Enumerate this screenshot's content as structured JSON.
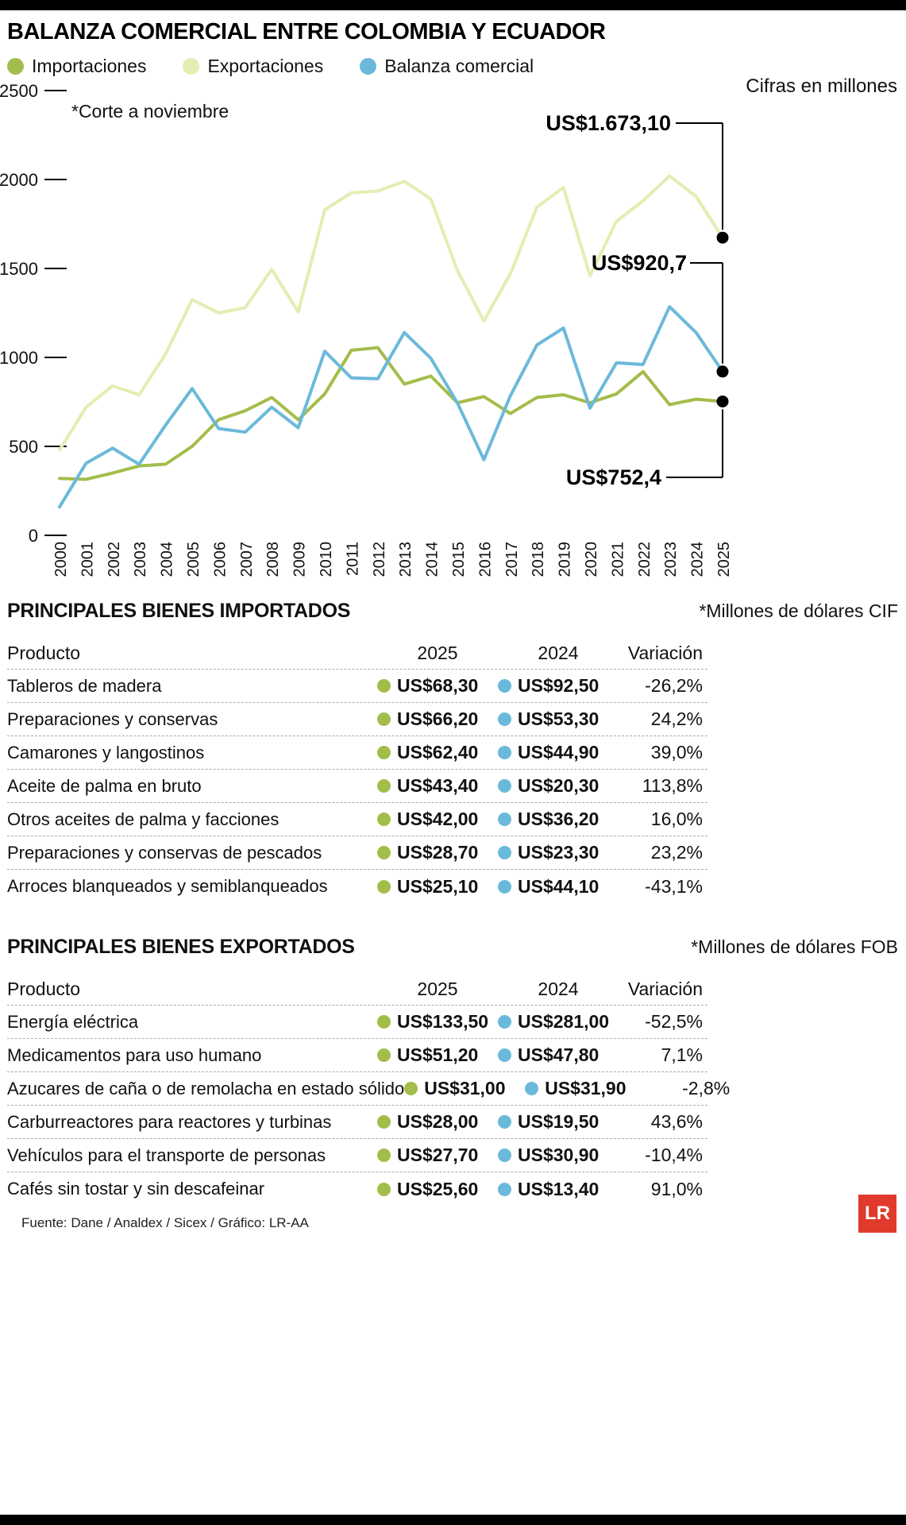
{
  "title": "BALANZA COMERCIAL ENTRE COLOMBIA Y ECUADOR",
  "legend": [
    {
      "name": "importaciones",
      "label": "Importaciones",
      "color": "#a3bd4a"
    },
    {
      "name": "exportaciones",
      "label": "Exportaciones",
      "color": "#e4edb2"
    },
    {
      "name": "balanza",
      "label": "Balanza comercial",
      "color": "#6bb9da"
    }
  ],
  "annotations": {
    "cifras": "Cifras en millones",
    "corte": "*Corte a noviembre",
    "exportaciones_2025": "US$1.673,10",
    "balanza_2025": "US$920,7",
    "importaciones_2025": "US$752,4"
  },
  "chart_data": {
    "type": "line",
    "title": "Balanza comercial entre Colombia y Ecuador",
    "unit": "Cifras en millones de US$",
    "xlabel": "",
    "ylabel": "",
    "ylim": [
      0,
      2500
    ],
    "yticks": [
      0,
      500,
      1000,
      1500,
      2000,
      2500
    ],
    "grid": false,
    "legend_position": "top-left",
    "x": [
      2000,
      2001,
      2002,
      2003,
      2004,
      2005,
      2006,
      2007,
      2008,
      2009,
      2010,
      2011,
      2012,
      2013,
      2014,
      2015,
      2016,
      2017,
      2018,
      2019,
      2020,
      2021,
      2022,
      2023,
      2024,
      2025
    ],
    "series": [
      {
        "name": "Importaciones",
        "color": "#a3bd4a",
        "values": [
          320,
          315,
          350,
          390,
          400,
          500,
          650,
          700,
          775,
          650,
          795,
          1040,
          1055,
          850,
          895,
          745,
          780,
          685,
          775,
          790,
          745,
          795,
          920,
          735,
          765,
          752.4
        ]
      },
      {
        "name": "Exportaciones",
        "color": "#e4edb2",
        "values": [
          480,
          720,
          840,
          790,
          1020,
          1325,
          1250,
          1280,
          1495,
          1255,
          1830,
          1925,
          1935,
          1990,
          1890,
          1490,
          1205,
          1470,
          1845,
          1955,
          1460,
          1765,
          1880,
          2020,
          1905,
          1673.1
        ]
      },
      {
        "name": "Balanza comercial",
        "color": "#6bb9da",
        "values": [
          160,
          405,
          490,
          400,
          620,
          825,
          600,
          580,
          720,
          605,
          1035,
          885,
          880,
          1140,
          995,
          745,
          425,
          785,
          1070,
          1165,
          715,
          970,
          960,
          1285,
          1140,
          920.7
        ]
      }
    ],
    "end_labels": {
      "Exportaciones": "US$1.673,10",
      "Balanza comercial": "US$920,7",
      "Importaciones": "US$752,4"
    }
  },
  "tables": [
    {
      "title": "PRINCIPALES BIENES IMPORTADOS",
      "unit_note": "*Millones de dólares CIF",
      "columns": [
        "Producto",
        "2025",
        "2024",
        "Variación"
      ],
      "rows": [
        {
          "producto": "Tableros de madera",
          "v2025": "US$68,30",
          "v2024": "US$92,50",
          "variacion": "-26,2%"
        },
        {
          "producto": "Preparaciones y conservas",
          "v2025": "US$66,20",
          "v2024": "US$53,30",
          "variacion": "24,2%"
        },
        {
          "producto": "Camarones y langostinos",
          "v2025": "US$62,40",
          "v2024": "US$44,90",
          "variacion": "39,0%"
        },
        {
          "producto": "Aceite de palma en bruto",
          "v2025": "US$43,40",
          "v2024": "US$20,30",
          "variacion": "113,8%"
        },
        {
          "producto": "Otros aceites de palma y facciones",
          "v2025": "US$42,00",
          "v2024": "US$36,20",
          "variacion": "16,0%"
        },
        {
          "producto": "Preparaciones y conservas de pescados",
          "v2025": "US$28,70",
          "v2024": "US$23,30",
          "variacion": "23,2%"
        },
        {
          "producto": "Arroces blanqueados y semiblanqueados",
          "v2025": "US$25,10",
          "v2024": "US$44,10",
          "variacion": "-43,1%"
        }
      ]
    },
    {
      "title": "PRINCIPALES BIENES EXPORTADOS",
      "unit_note": "*Millones de dólares FOB",
      "columns": [
        "Producto",
        "2025",
        "2024",
        "Variación"
      ],
      "rows": [
        {
          "producto": "Energía eléctrica",
          "v2025": "US$133,50",
          "v2024": "US$281,00",
          "variacion": "-52,5%"
        },
        {
          "producto": "Medicamentos para uso humano",
          "v2025": "US$51,20",
          "v2024": "US$47,80",
          "variacion": "7,1%"
        },
        {
          "producto": "Azucares de caña o de remolacha en estado sólido",
          "v2025": "US$31,00",
          "v2024": "US$31,90",
          "variacion": "-2,8%"
        },
        {
          "producto": "Carburreactores para reactores y turbinas",
          "v2025": "US$28,00",
          "v2024": "US$19,50",
          "variacion": "43,6%"
        },
        {
          "producto": "Vehículos para el transporte de personas",
          "v2025": "US$27,70",
          "v2024": "US$30,90",
          "variacion": "-10,4%"
        },
        {
          "producto": "Cafés sin tostar y sin descafeinar",
          "v2025": "US$25,60",
          "v2024": "US$13,40",
          "variacion": "91,0%"
        }
      ]
    }
  ],
  "footer": {
    "source": "Fuente: Dane / Analdex / Sicex / Gráfico: LR-AA",
    "logo": "LR"
  }
}
